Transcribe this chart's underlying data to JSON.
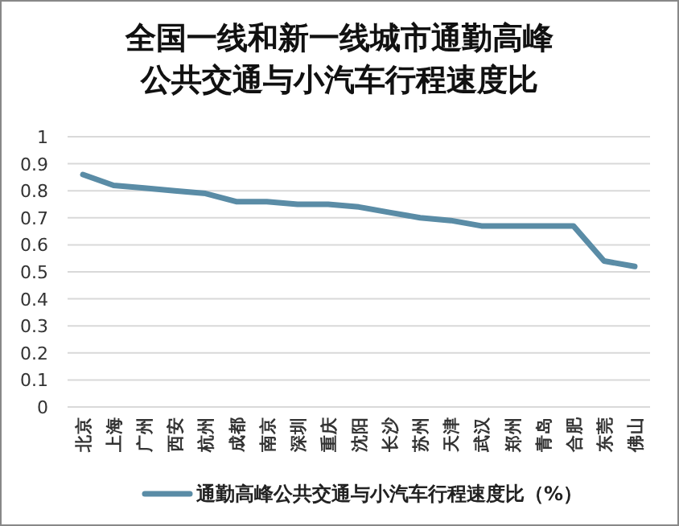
{
  "chart_data": {
    "type": "line",
    "title": "全国一线和新一线城市通勤高峰公共交通与小汽车行程速度比",
    "categories": [
      "北京",
      "上海",
      "广州",
      "西安",
      "杭州",
      "成都",
      "南京",
      "深圳",
      "重庆",
      "沈阳",
      "长沙",
      "苏州",
      "天津",
      "武汉",
      "郑州",
      "青岛",
      "合肥",
      "东莞",
      "佛山"
    ],
    "series": [
      {
        "name": "通勤高峰公共交通与小汽车行程速度比（%）",
        "color": "#5a8ca6",
        "values": [
          0.86,
          0.82,
          0.81,
          0.8,
          0.79,
          0.76,
          0.76,
          0.75,
          0.75,
          0.74,
          0.72,
          0.7,
          0.69,
          0.67,
          0.67,
          0.67,
          0.67,
          0.54,
          0.52
        ]
      }
    ],
    "ylim": [
      0,
      1
    ],
    "yticks": [
      0,
      0.1,
      0.2,
      0.3,
      0.4,
      0.5,
      0.6,
      0.7,
      0.8,
      0.9,
      1
    ],
    "grid": "y",
    "legend": "bottom",
    "marker": "none",
    "line_style": "solid"
  }
}
